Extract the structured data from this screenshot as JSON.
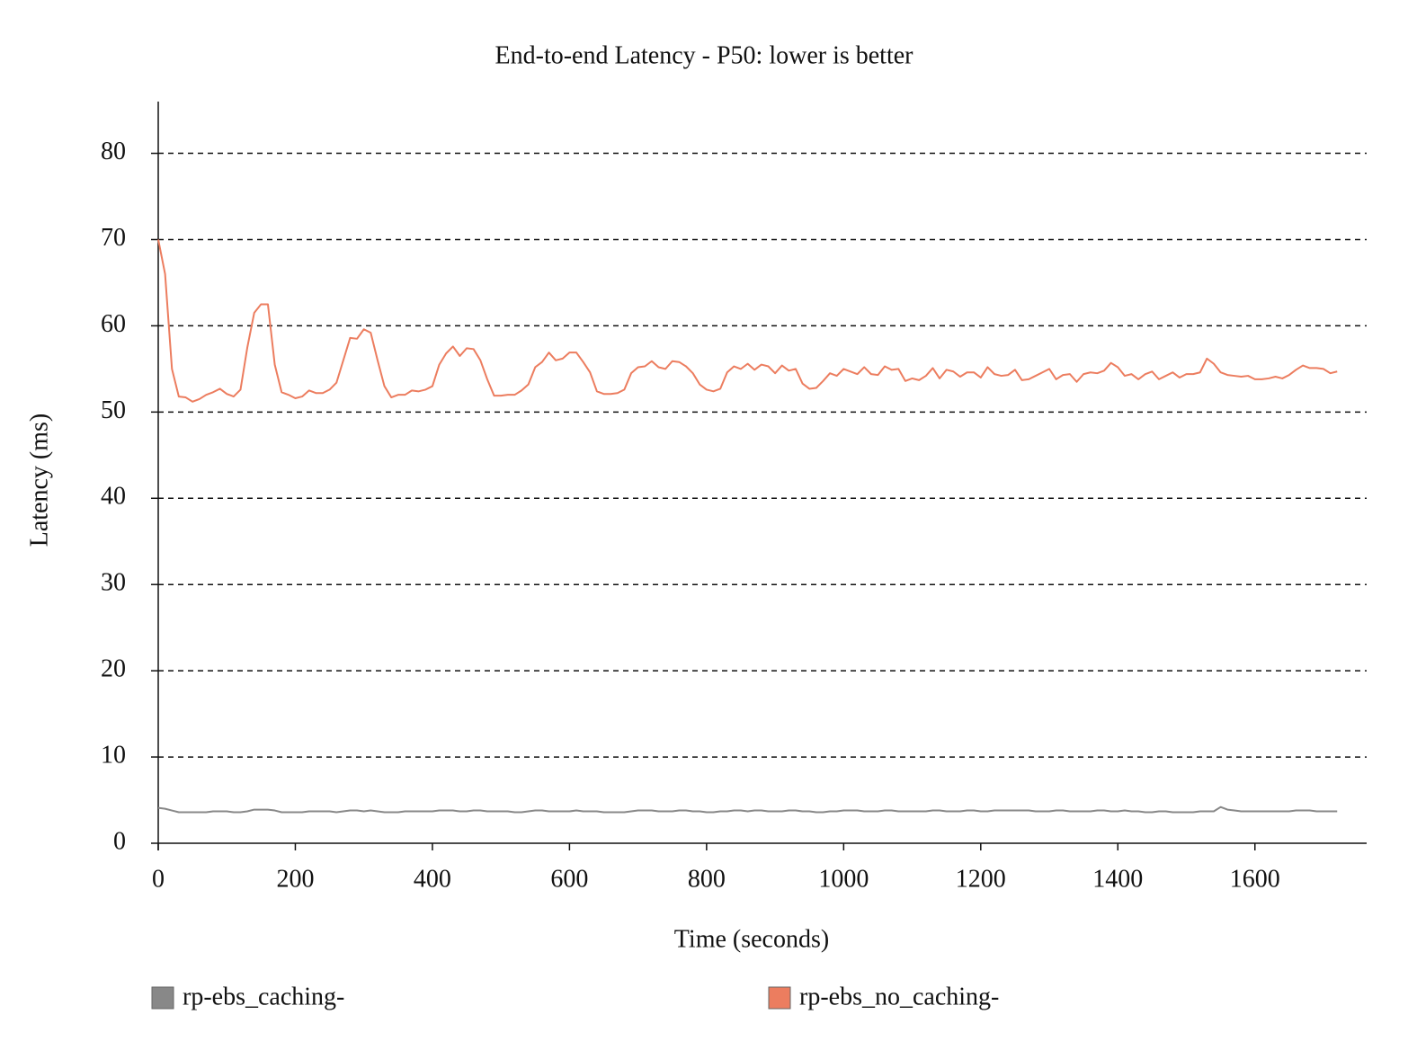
{
  "chart_data": {
    "type": "line",
    "title": "End-to-end Latency - P50: lower is better",
    "xlabel": "Time (seconds)",
    "ylabel": "Latency (ms)",
    "x": [
      0,
      10,
      20,
      30,
      40,
      50,
      60,
      70,
      80,
      90,
      100,
      110,
      120,
      130,
      140,
      150,
      160,
      170,
      180,
      190,
      200,
      210,
      220,
      230,
      240,
      250,
      260,
      270,
      280,
      290,
      300,
      310,
      320,
      330,
      340,
      350,
      360,
      370,
      380,
      390,
      400,
      410,
      420,
      430,
      440,
      450,
      460,
      470,
      480,
      490,
      500,
      510,
      520,
      530,
      540,
      550,
      560,
      570,
      580,
      590,
      600,
      610,
      620,
      630,
      640,
      650,
      660,
      670,
      680,
      690,
      700,
      710,
      720,
      730,
      740,
      750,
      760,
      770,
      780,
      790,
      800,
      810,
      820,
      830,
      840,
      850,
      860,
      870,
      880,
      890,
      900,
      910,
      920,
      930,
      940,
      950,
      960,
      970,
      980,
      990,
      1000,
      1010,
      1020,
      1030,
      1040,
      1050,
      1060,
      1070,
      1080,
      1090,
      1100,
      1110,
      1120,
      1130,
      1140,
      1150,
      1160,
      1170,
      1180,
      1190,
      1200,
      1210,
      1220,
      1230,
      1240,
      1250,
      1260,
      1270,
      1280,
      1290,
      1300,
      1310,
      1320,
      1330,
      1340,
      1350,
      1360,
      1370,
      1380,
      1390,
      1400,
      1410,
      1420,
      1430,
      1440,
      1450,
      1460,
      1470,
      1480,
      1490,
      1500,
      1510,
      1520,
      1530,
      1540,
      1550,
      1560,
      1570,
      1580,
      1590,
      1600,
      1610,
      1620,
      1630,
      1640,
      1650,
      1660,
      1670,
      1680,
      1690,
      1700,
      1710,
      1720
    ],
    "series": [
      {
        "name": "rp-ebs_caching-",
        "color": "#888888",
        "values": [
          4.1,
          4.0,
          3.8,
          3.6,
          3.6,
          3.6,
          3.6,
          3.6,
          3.7,
          3.7,
          3.7,
          3.6,
          3.6,
          3.7,
          3.9,
          3.9,
          3.9,
          3.8,
          3.6,
          3.6,
          3.6,
          3.6,
          3.7,
          3.7,
          3.7,
          3.7,
          3.6,
          3.7,
          3.8,
          3.8,
          3.7,
          3.8,
          3.7,
          3.6,
          3.6,
          3.6,
          3.7,
          3.7,
          3.7,
          3.7,
          3.7,
          3.8,
          3.8,
          3.8,
          3.7,
          3.7,
          3.8,
          3.8,
          3.7,
          3.7,
          3.7,
          3.7,
          3.6,
          3.6,
          3.7,
          3.8,
          3.8,
          3.7,
          3.7,
          3.7,
          3.7,
          3.8,
          3.7,
          3.7,
          3.7,
          3.6,
          3.6,
          3.6,
          3.6,
          3.7,
          3.8,
          3.8,
          3.8,
          3.7,
          3.7,
          3.7,
          3.8,
          3.8,
          3.7,
          3.7,
          3.6,
          3.6,
          3.7,
          3.7,
          3.8,
          3.8,
          3.7,
          3.8,
          3.8,
          3.7,
          3.7,
          3.7,
          3.8,
          3.8,
          3.7,
          3.7,
          3.6,
          3.6,
          3.7,
          3.7,
          3.8,
          3.8,
          3.8,
          3.7,
          3.7,
          3.7,
          3.8,
          3.8,
          3.7,
          3.7,
          3.7,
          3.7,
          3.7,
          3.8,
          3.8,
          3.7,
          3.7,
          3.7,
          3.8,
          3.8,
          3.7,
          3.7,
          3.8,
          3.8,
          3.8,
          3.8,
          3.8,
          3.8,
          3.7,
          3.7,
          3.7,
          3.8,
          3.8,
          3.7,
          3.7,
          3.7,
          3.7,
          3.8,
          3.8,
          3.7,
          3.7,
          3.8,
          3.7,
          3.7,
          3.6,
          3.6,
          3.7,
          3.7,
          3.6,
          3.6,
          3.6,
          3.6,
          3.7,
          3.7,
          3.7,
          4.2,
          3.9,
          3.8,
          3.7,
          3.7,
          3.7,
          3.7,
          3.7,
          3.7,
          3.7,
          3.7,
          3.8,
          3.8,
          3.8,
          3.7,
          3.7,
          3.7,
          3.7
        ]
      },
      {
        "name": "rp-ebs_no_caching-",
        "color": "#ec7d5f",
        "values": [
          70,
          66,
          55,
          51.8,
          51.7,
          51.2,
          51.5,
          52,
          52.3,
          52.7,
          52.1,
          51.8,
          52.6,
          57.5,
          61.5,
          62.5,
          62.5,
          55.5,
          52.3,
          52,
          51.6,
          51.8,
          52.5,
          52.2,
          52.2,
          52.6,
          53.4,
          56,
          58.6,
          58.5,
          59.6,
          59.2,
          56,
          53,
          51.7,
          52,
          52,
          52.5,
          52.4,
          52.6,
          53,
          55.5,
          56.8,
          57.6,
          56.5,
          57.4,
          57.3,
          56,
          53.8,
          51.9,
          51.9,
          52,
          52,
          52.5,
          53.2,
          55.2,
          55.8,
          56.9,
          56,
          56.2,
          56.9,
          56.9,
          55.8,
          54.6,
          52.4,
          52.1,
          52.1,
          52.2,
          52.6,
          54.5,
          55.2,
          55.3,
          55.9,
          55.2,
          55,
          55.9,
          55.8,
          55.3,
          54.5,
          53.2,
          52.6,
          52.4,
          52.7,
          54.6,
          55.3,
          55,
          55.6,
          54.9,
          55.5,
          55.3,
          54.5,
          55.4,
          54.8,
          55,
          53.3,
          52.7,
          52.8,
          53.6,
          54.5,
          54.2,
          55,
          54.7,
          54.4,
          55.2,
          54.4,
          54.3,
          55.3,
          54.9,
          55,
          53.6,
          53.9,
          53.7,
          54.2,
          55.1,
          53.9,
          54.9,
          54.7,
          54.1,
          54.6,
          54.6,
          54,
          55.2,
          54.4,
          54.2,
          54.3,
          54.9,
          53.7,
          53.8,
          54.2,
          54.6,
          55,
          53.8,
          54.3,
          54.4,
          53.5,
          54.4,
          54.6,
          54.5,
          54.8,
          55.7,
          55.2,
          54.2,
          54.4,
          53.8,
          54.4,
          54.7,
          53.8,
          54.2,
          54.6,
          54,
          54.4,
          54.4,
          54.6,
          56.2,
          55.6,
          54.6,
          54.3,
          54.2,
          54.1,
          54.2,
          53.8,
          53.8,
          53.9,
          54.1,
          53.9,
          54.3,
          54.9,
          55.4,
          55.1,
          55.1,
          55,
          54.5,
          54.7
        ]
      }
    ],
    "xlim": [
      0,
      1763
    ],
    "ylim": [
      0,
      86
    ],
    "xticks": [
      0,
      200,
      400,
      600,
      800,
      1000,
      1200,
      1400,
      1600
    ],
    "yticks": [
      0,
      10,
      20,
      30,
      40,
      50,
      60,
      70,
      80
    ],
    "grid": true
  }
}
